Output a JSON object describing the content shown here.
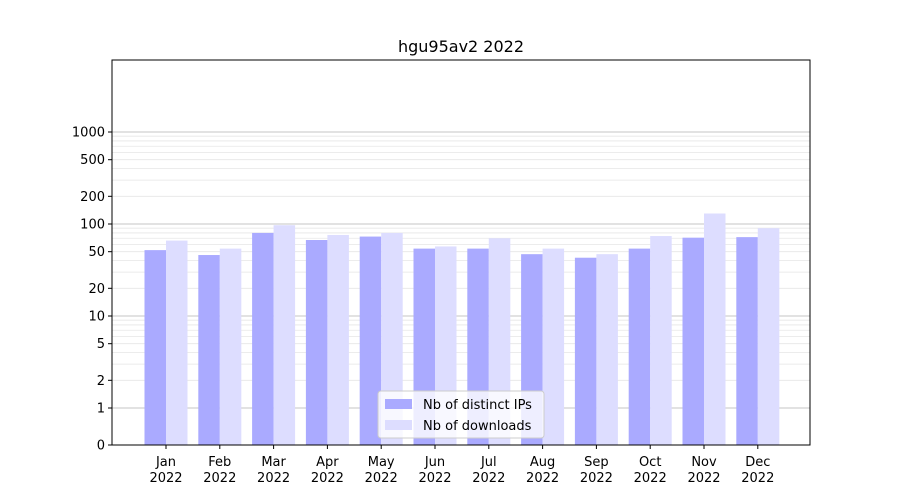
{
  "chart_data": {
    "type": "bar",
    "title": "hgu95av2 2022",
    "xlabel": "",
    "ylabel": "",
    "yscale": "symlog",
    "yticks": [
      0,
      1,
      2,
      5,
      10,
      20,
      50,
      100,
      200,
      500,
      1000
    ],
    "ytick_labels": [
      "0",
      "1",
      "2",
      "5",
      "10",
      "20",
      "50",
      "100",
      "200",
      "500",
      "1000"
    ],
    "categories": [
      "Jan\n2022",
      "Feb\n2022",
      "Mar\n2022",
      "Apr\n2022",
      "May\n2022",
      "Jun\n2022",
      "Jul\n2022",
      "Aug\n2022",
      "Sep\n2022",
      "Oct\n2022",
      "Nov\n2022",
      "Dec\n2022"
    ],
    "series": [
      {
        "name": "Nb of distinct IPs",
        "color": "#aaaaff",
        "values": [
          52,
          46,
          80,
          67,
          73,
          54,
          54,
          47,
          43,
          54,
          71,
          72
        ]
      },
      {
        "name": "Nb of downloads",
        "color": "#ddddff",
        "values": [
          66,
          54,
          97,
          76,
          80,
          57,
          70,
          54,
          47,
          74,
          130,
          90
        ]
      }
    ],
    "grid": true,
    "legend": "lower-center"
  }
}
